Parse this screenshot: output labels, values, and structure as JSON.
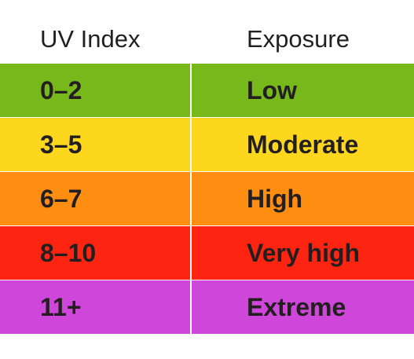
{
  "table": {
    "headers": {
      "uv_index": "UV Index",
      "exposure": "Exposure"
    },
    "rows": [
      {
        "index": "0–2",
        "exposure": "Low",
        "color": "#77b91b"
      },
      {
        "index": "3–5",
        "exposure": "Moderate",
        "color": "#fcd71e"
      },
      {
        "index": "6–7",
        "exposure": "High",
        "color": "#fd8e12"
      },
      {
        "index": "8–10",
        "exposure": "Very high",
        "color": "#fd2511"
      },
      {
        "index": "11+",
        "exposure": "Extreme",
        "color": "#cf46da"
      }
    ]
  }
}
